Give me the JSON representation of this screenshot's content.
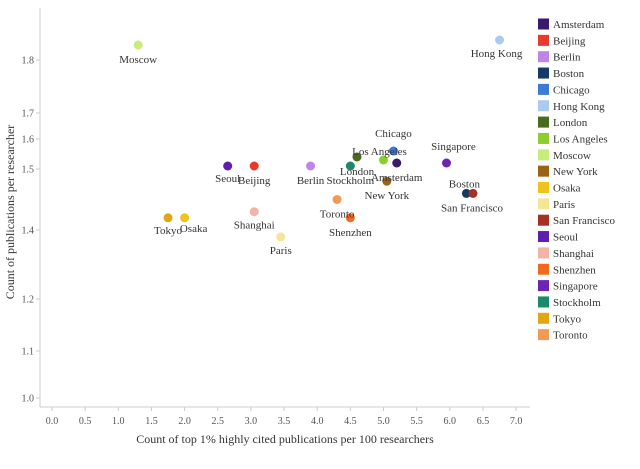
{
  "chart_data": {
    "type": "scatter",
    "title": "",
    "xlabel": "Count of top 1% highly cited publications per 100 researchers",
    "ylabel": "Count of publications per researcher",
    "xlim": [
      0.0,
      7.0
    ],
    "y_ticks": [
      1.0,
      1.1,
      1.2,
      1.4,
      1.5,
      1.6,
      1.7,
      1.8
    ],
    "y_tick_labels": [
      "1.0",
      "1.1",
      "1.2",
      "1.4",
      "1.5",
      "1.6",
      "1.7",
      "1.8"
    ],
    "x_ticks": [
      0.0,
      0.5,
      1.0,
      1.5,
      2.0,
      2.5,
      3.0,
      3.5,
      4.0,
      4.5,
      5.0,
      5.5,
      6.0,
      6.5,
      7.0
    ],
    "x_tick_labels": [
      "0.0",
      "0.5",
      "1.0",
      "1.5",
      "2.0",
      "2.5",
      "3.0",
      "3.5",
      "4.0",
      "4.5",
      "5.0",
      "5.5",
      "6.0",
      "6.5",
      "7.0"
    ],
    "grid": false,
    "legend_position": "right",
    "series": [
      {
        "name": "Amsterdam",
        "x": 5.2,
        "y": 1.52,
        "color": "#3b1a6e"
      },
      {
        "name": "Beijing",
        "x": 3.05,
        "y": 1.51,
        "color": "#e8392a"
      },
      {
        "name": "Berlin",
        "x": 3.9,
        "y": 1.51,
        "color": "#c084e8"
      },
      {
        "name": "Boston",
        "x": 6.25,
        "y": 1.46,
        "color": "#163a66"
      },
      {
        "name": "Chicago",
        "x": 5.15,
        "y": 1.56,
        "color": "#3d7ad6"
      },
      {
        "name": "Hong Kong",
        "x": 6.75,
        "y": 1.84,
        "color": "#a9cbef"
      },
      {
        "name": "London",
        "x": 4.6,
        "y": 1.54,
        "color": "#4a6b1e"
      },
      {
        "name": "Los Angeles",
        "x": 5.0,
        "y": 1.53,
        "color": "#8ccf2c"
      },
      {
        "name": "Moscow",
        "x": 1.3,
        "y": 1.83,
        "color": "#c7ec7c"
      },
      {
        "name": "New York",
        "x": 5.05,
        "y": 1.48,
        "color": "#9a6412"
      },
      {
        "name": "Osaka",
        "x": 2.0,
        "y": 1.42,
        "color": "#f0c31a"
      },
      {
        "name": "Paris",
        "x": 3.45,
        "y": 1.38,
        "color": "#f7e596"
      },
      {
        "name": "San Francisco",
        "x": 6.35,
        "y": 1.46,
        "color": "#a63022"
      },
      {
        "name": "Seoul",
        "x": 2.65,
        "y": 1.51,
        "color": "#5e1fb0"
      },
      {
        "name": "Shanghai",
        "x": 3.05,
        "y": 1.43,
        "color": "#f4b3a6"
      },
      {
        "name": "Shenzhen",
        "x": 4.5,
        "y": 1.42,
        "color": "#f26a21"
      },
      {
        "name": "Singapore",
        "x": 5.95,
        "y": 1.52,
        "color": "#6c24b8"
      },
      {
        "name": "Stockholm",
        "x": 4.5,
        "y": 1.51,
        "color": "#1a8a6a"
      },
      {
        "name": "Tokyo",
        "x": 1.75,
        "y": 1.42,
        "color": "#e0a614"
      },
      {
        "name": "Toronto",
        "x": 4.3,
        "y": 1.45,
        "color": "#f29a55"
      }
    ]
  }
}
